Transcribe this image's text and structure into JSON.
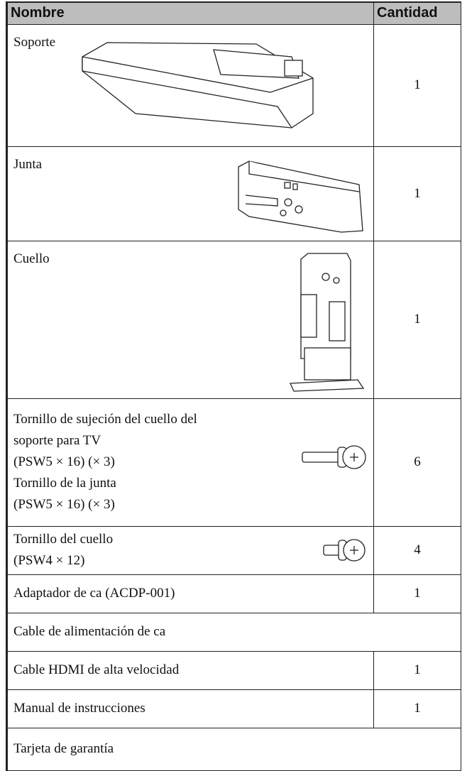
{
  "table": {
    "header": [
      "Nombre",
      "Cantidad"
    ],
    "rows": [
      {
        "name": [
          "Soporte"
        ],
        "quantity": "1"
      },
      {
        "name": [
          "Junta"
        ],
        "quantity": "1"
      },
      {
        "name": [
          "Cuello"
        ],
        "quantity": "1"
      },
      {
        "name": [
          "Tornillo de sujeción del cuello del",
          "soporte para TV",
          "(PSW5 × 16) (× 3)",
          "Tornillo de la junta",
          "(PSW5 × 16) (× 3)"
        ],
        "quantity": "6"
      },
      {
        "name": [
          "Tornillo del cuello",
          "(PSW4 × 12)"
        ],
        "quantity": "4"
      },
      {
        "name": [
          "Adaptador de ca (ACDP-001)"
        ],
        "quantity": "1"
      },
      {
        "name": [
          "Cable de alimentación de ca"
        ]
      },
      {
        "name": [
          "Cable HDMI de alta velocidad"
        ],
        "quantity": "1"
      },
      {
        "name": [
          "Manual de instrucciones"
        ],
        "quantity": "1"
      },
      {
        "name": [
          "Tarjeta de garantía"
        ]
      }
    ]
  }
}
